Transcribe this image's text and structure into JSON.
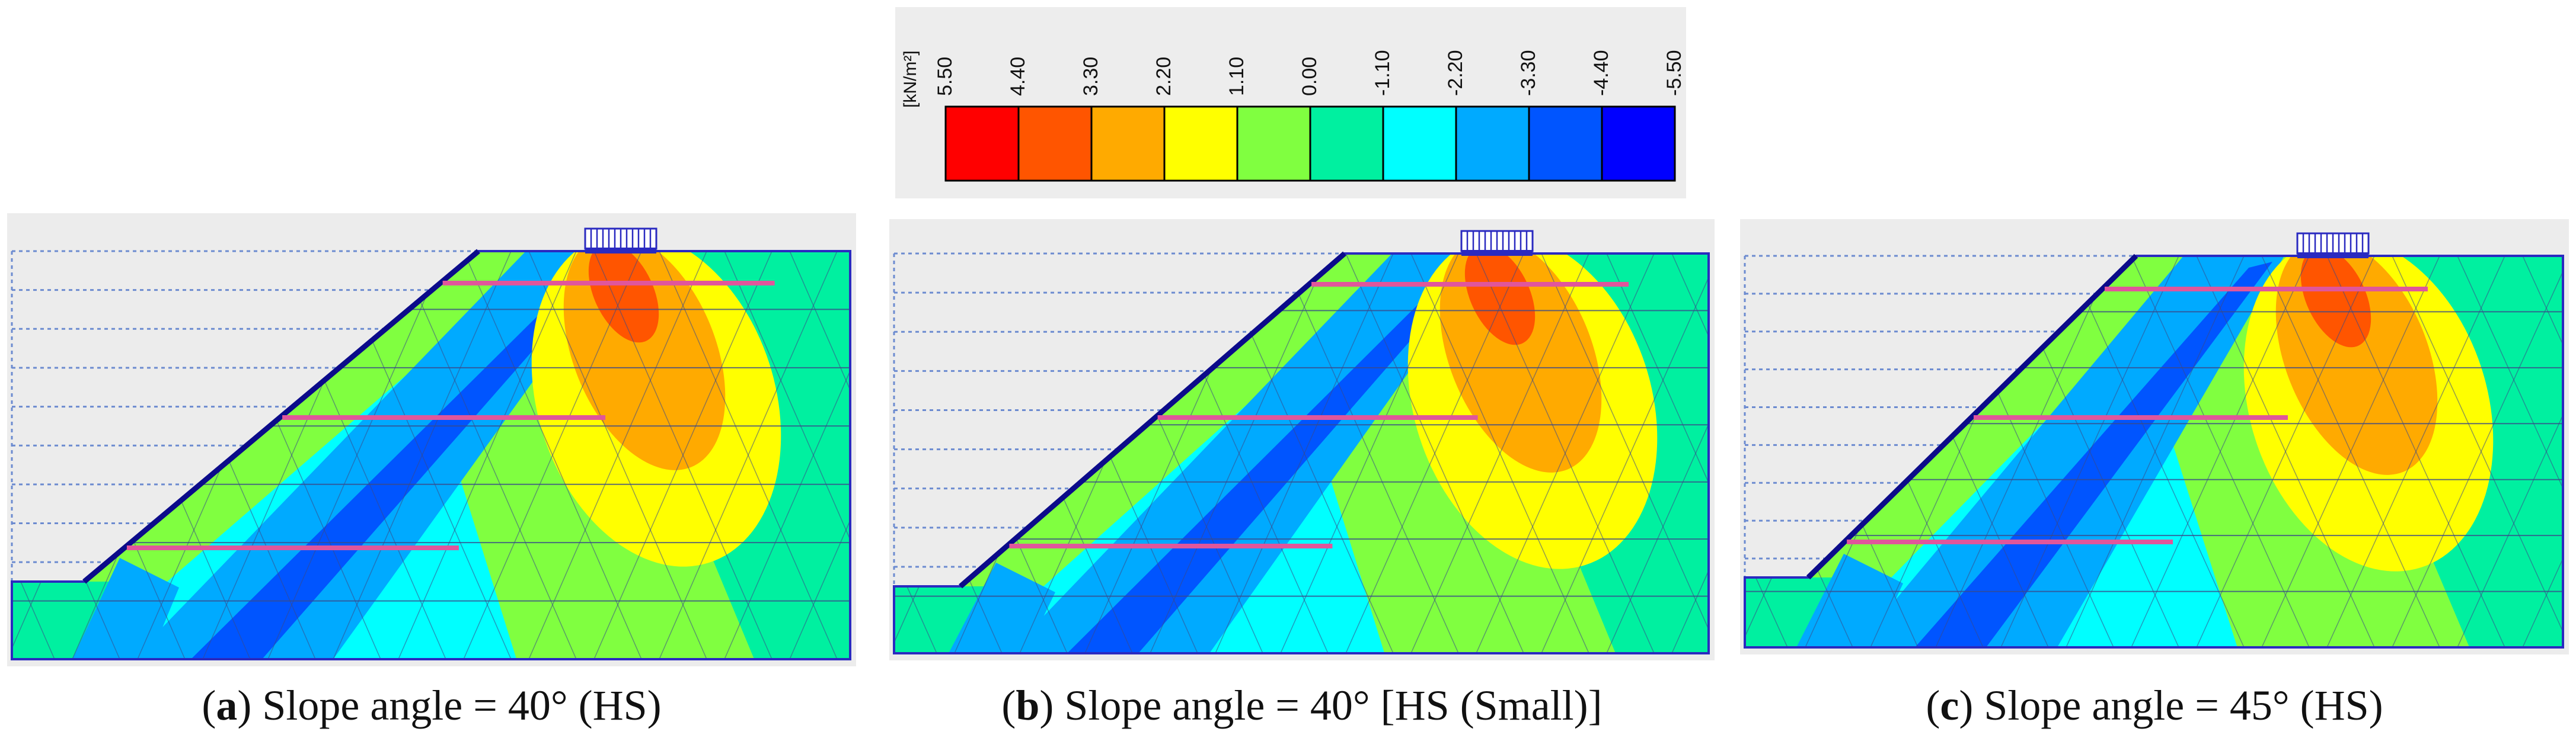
{
  "legend": {
    "unit": "[kN/m²]",
    "ticks": [
      "5.50",
      "4.40",
      "3.30",
      "2.20",
      "1.10",
      "0.00",
      "-1.10",
      "-2.20",
      "-3.30",
      "-4.40",
      "-5.50"
    ],
    "colors": [
      "#ff0000",
      "#ff5500",
      "#ffaa00",
      "#ffff00",
      "#80ff40",
      "#00f0a0",
      "#00ffff",
      "#00aaff",
      "#0055ff",
      "#0000ff"
    ]
  },
  "panels": [
    {
      "id": "a",
      "letter": "a",
      "caption_rest": " Slope angle = 40° (HS)"
    },
    {
      "id": "b",
      "letter": "b",
      "caption_rest": " Slope angle = 40° [HS (Small)]"
    },
    {
      "id": "c",
      "letter": "c",
      "caption_rest": " Slope angle = 45° (HS)"
    }
  ],
  "colors": {
    "mesh": "#3a4a8a",
    "boundary": "#2a2ac0",
    "facing": "#0b0b8a",
    "nail": "#e0569b",
    "guide": "#6c8bd0",
    "panel_bg": "#ececec"
  }
}
